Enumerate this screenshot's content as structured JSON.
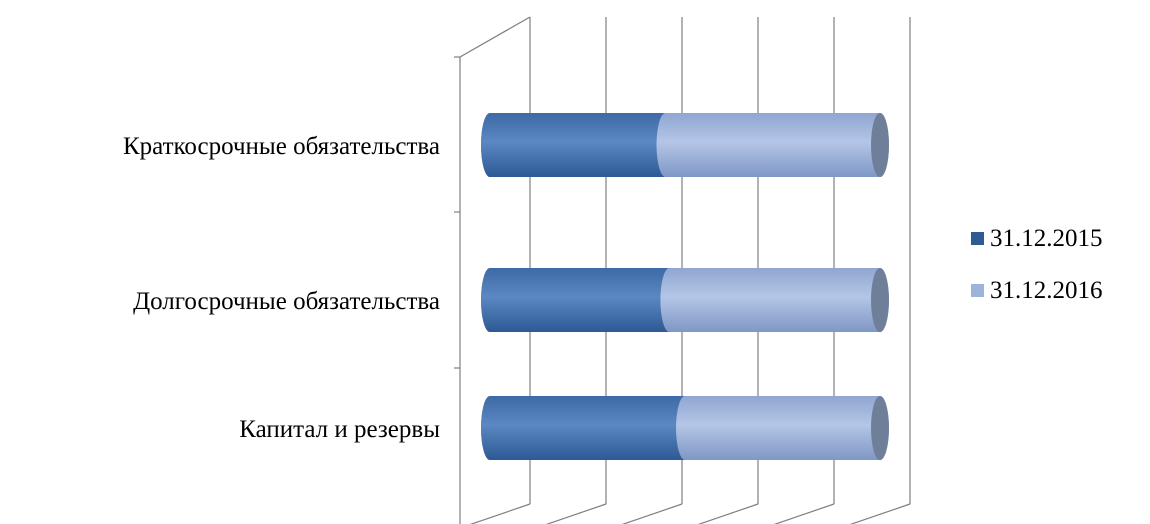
{
  "chart_data": {
    "type": "bar",
    "orientation": "horizontal",
    "stacked": true,
    "percent_stacked": true,
    "style_3d": true,
    "categories": [
      "Краткосрочные обязательства",
      "Долгосрочные обязательства",
      "Капитал и резервы"
    ],
    "series": [
      {
        "name": "31.12.2015",
        "values": [
          45,
          46,
          50
        ]
      },
      {
        "name": "31.12.2016",
        "values": [
          55,
          54,
          50
        ]
      }
    ],
    "xlim": [
      0,
      100
    ],
    "grid": true,
    "legend_position": "right",
    "colors": {
      "series_1": "#4f7cb8",
      "series_1_dark": "#2f5a92",
      "series_2": "#9db3dc",
      "series_2_dark": "#7e96c3",
      "cap": "#6f7f9a",
      "gridline": "#7f7f7f"
    }
  }
}
